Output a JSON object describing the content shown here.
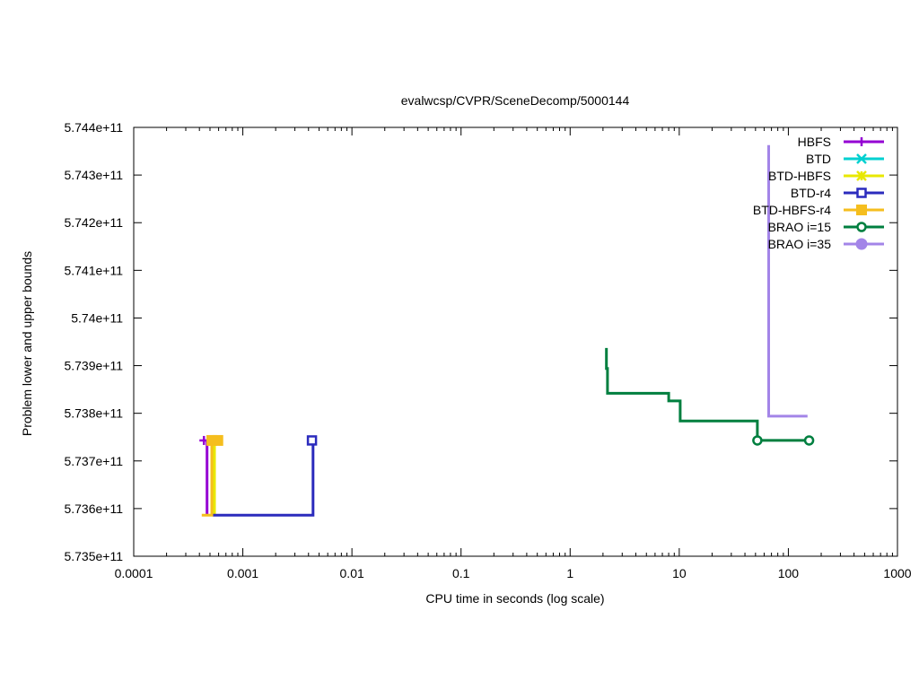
{
  "chart_data": {
    "type": "line",
    "title": "evalwcsp/CVPR/SceneDecomp/5000144",
    "xlabel": "CPU time in seconds (log scale)",
    "ylabel": "Problem lower and upper bounds",
    "xscale": "log",
    "xlim": [
      0.0001,
      1000
    ],
    "ylim": [
      573500000000,
      574400000000
    ],
    "x_ticks": [
      {
        "value": 0.0001,
        "label": "0.0001"
      },
      {
        "value": 0.001,
        "label": "0.001"
      },
      {
        "value": 0.01,
        "label": "0.01"
      },
      {
        "value": 0.1,
        "label": "0.1"
      },
      {
        "value": 1,
        "label": "1"
      },
      {
        "value": 10,
        "label": "10"
      },
      {
        "value": 100,
        "label": "100"
      },
      {
        "value": 1000,
        "label": "1000"
      }
    ],
    "y_ticks": [
      {
        "value": 573500000000,
        "label": "5.735e+11"
      },
      {
        "value": 573600000000,
        "label": "5.736e+11"
      },
      {
        "value": 573700000000,
        "label": "5.737e+11"
      },
      {
        "value": 573800000000,
        "label": "5.738e+11"
      },
      {
        "value": 573900000000,
        "label": "5.739e+11"
      },
      {
        "value": 574000000000,
        "label": "5.74e+11"
      },
      {
        "value": 574100000000,
        "label": "5.741e+11"
      },
      {
        "value": 574200000000,
        "label": "5.742e+11"
      },
      {
        "value": 574300000000,
        "label": "5.743e+11"
      },
      {
        "value": 574400000000,
        "label": "5.744e+11"
      }
    ],
    "grid": false,
    "legend_position": "top-right",
    "series": [
      {
        "name": "HBFS",
        "color": "#9400d3",
        "marker": "plus",
        "segments": [
          [
            [
              0.00044,
              573743000000
            ],
            [
              0.00044,
              573743000000
            ]
          ],
          [
            [
              0.00047,
              573743000000
            ],
            [
              0.00047,
              573586000000
            ]
          ]
        ],
        "points": [
          [
            0.00044,
            573743000000
          ]
        ]
      },
      {
        "name": "BTD",
        "color": "#00d0d0",
        "marker": "cross",
        "segments": [],
        "points": []
      },
      {
        "name": "BTD-HBFS",
        "color": "#e8e800",
        "marker": "star",
        "segments": [
          [
            [
              0.00055,
              573743000000
            ],
            [
              0.00055,
              573586000000
            ]
          ]
        ],
        "points": [
          [
            0.00056,
            573743000000
          ]
        ]
      },
      {
        "name": "BTD-r4",
        "color": "#2b2bbd",
        "marker": "square",
        "segments": [
          [
            [
              0.00053,
              573586000000
            ],
            [
              0.0044,
              573586000000
            ],
            [
              0.0044,
              573743000000
            ]
          ]
        ],
        "points": [
          [
            0.0043,
            573743000000
          ]
        ]
      },
      {
        "name": "BTD-HBFS-r4",
        "color": "#f5be1e",
        "marker": "filled-square",
        "segments": [
          [
            [
              0.00042,
              573586000000
            ],
            [
              0.00052,
              573586000000
            ],
            [
              0.00052,
              573743000000
            ]
          ]
        ],
        "points": [
          [
            0.00052,
            573743000000
          ],
          [
            0.00059,
            573743000000
          ]
        ]
      },
      {
        "name": "BRAO i=15",
        "color": "#007f3f",
        "marker": "circle",
        "segments": [
          [
            [
              2.15,
              573937000000
            ],
            [
              2.15,
              573894000000
            ],
            [
              2.2,
              573894000000
            ],
            [
              2.2,
              573842000000
            ],
            [
              8.0,
              573842000000
            ],
            [
              8.0,
              573826000000
            ],
            [
              10.2,
              573826000000
            ],
            [
              10.2,
              573784000000
            ],
            [
              52.0,
              573784000000
            ],
            [
              52.0,
              573743000000
            ],
            [
              155.0,
              573743000000
            ]
          ]
        ],
        "points": [
          [
            52.0,
            573743000000
          ],
          [
            155.0,
            573743000000
          ]
        ]
      },
      {
        "name": "BRAO i=35",
        "color": "#a385e8",
        "marker": "filled-circle",
        "segments": [
          [
            [
              66.0,
              574363000000
            ],
            [
              66.0,
              573794000000
            ],
            [
              150.0,
              573794000000
            ]
          ]
        ],
        "points": []
      }
    ]
  }
}
